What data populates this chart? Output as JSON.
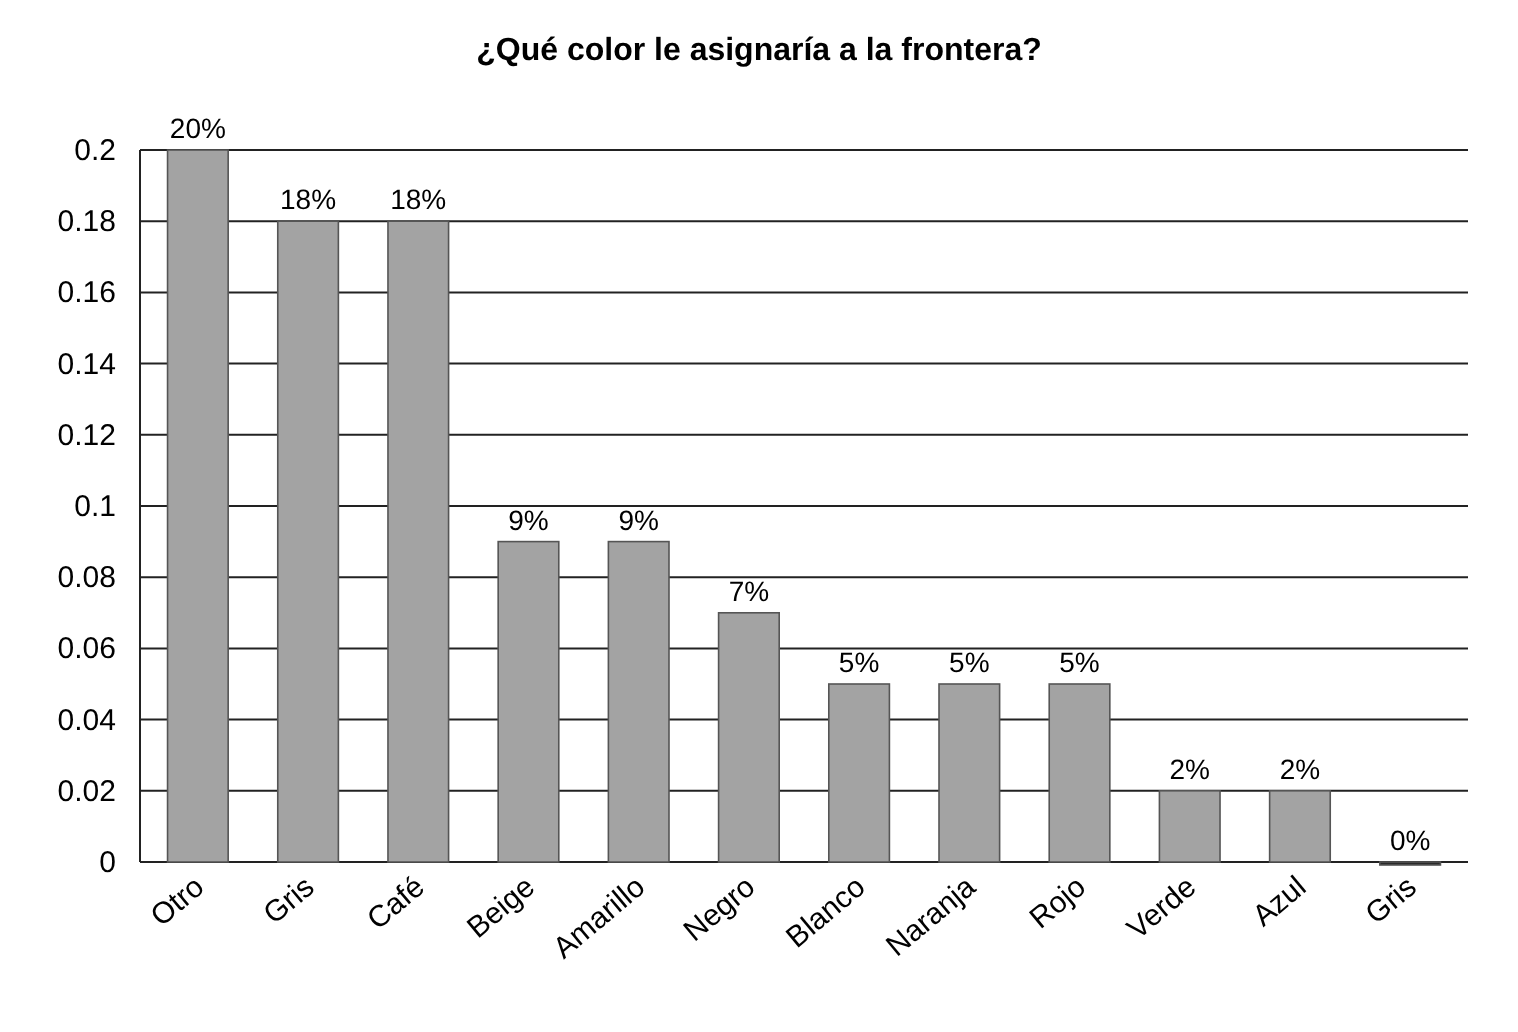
{
  "chart_data": {
    "type": "bar",
    "title": "¿Qué color le asignaría a la frontera?",
    "categories": [
      "Otro",
      "Gris",
      "Café",
      "Beige",
      "Amarillo",
      "Negro",
      "Blanco",
      "Naranja",
      "Rojo",
      "Verde",
      "Azul",
      "Gris"
    ],
    "values": [
      0.2,
      0.18,
      0.18,
      0.09,
      0.09,
      0.07,
      0.05,
      0.05,
      0.05,
      0.02,
      0.02,
      0
    ],
    "value_labels": [
      "20%",
      "18%",
      "18%",
      "9%",
      "9%",
      "7%",
      "5%",
      "5%",
      "5%",
      "2%",
      "2%",
      "0%"
    ],
    "colors": [
      "#a3a3a3",
      "#a3a3a3",
      "#a3a3a3",
      "#a3a3a3",
      "#a3a3a3",
      "#a3a3a3",
      "#a3a3a3",
      "#a3a3a3",
      "#a3a3a3",
      "#a3a3a3",
      "#a3a3a3",
      "#2a2a2a"
    ],
    "ylim": [
      0,
      0.2
    ],
    "yticks": [
      0,
      0.02,
      0.04,
      0.06,
      0.08,
      0.1,
      0.12,
      0.14,
      0.16,
      0.18,
      0.2
    ],
    "grid": "y"
  }
}
